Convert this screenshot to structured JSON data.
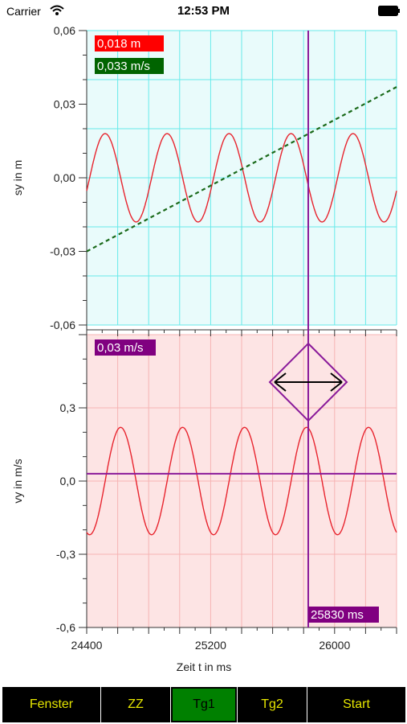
{
  "status": {
    "carrier": "Carrier",
    "time": "12:53 PM"
  },
  "toolbar": {
    "buttons": [
      {
        "label": "Fenster",
        "active": false
      },
      {
        "label": "ZZ",
        "active": false
      },
      {
        "label": "Tg1",
        "active": true
      },
      {
        "label": "Tg2",
        "active": false
      },
      {
        "label": "Start",
        "active": false
      }
    ]
  },
  "colors": {
    "top_bg": "#e9fbfb",
    "top_grid": "#66eaea",
    "bottom_bg": "#fde4e4",
    "bottom_grid": "#f6b4b4",
    "curve": "#e8242e",
    "dashed": "#1a6a1a",
    "cursor": "#8a1a9a"
  },
  "chart_data": [
    {
      "type": "line",
      "ylabel": "sy in m",
      "ylim": [
        -0.06,
        0.06
      ],
      "ytick_labels": [
        "0,06",
        "0,03",
        "0,00",
        "-0,03",
        "-0,06"
      ],
      "series": [
        {
          "role": "position sy",
          "amplitude": 0.018,
          "period_ms": 400,
          "start": [
            24400,
            0.0
          ]
        },
        {
          "role": "dashed linear fit",
          "style": "dashed",
          "x": [
            24400,
            26400
          ],
          "y": [
            -0.03,
            0.037
          ]
        }
      ],
      "readouts": [
        {
          "text": "0,018 m",
          "color": "#ff0000"
        },
        {
          "text": "0,033 m/s",
          "color": "#006400"
        }
      ]
    },
    {
      "type": "line",
      "ylabel": "vy in m/s",
      "xlabel": "Zeit t in ms",
      "ylim": [
        -0.6,
        0.6
      ],
      "ytick_labels": [
        "0,3",
        "0,0",
        "-0,3",
        "-0,6"
      ],
      "xlim": [
        24400,
        26400
      ],
      "xtick_labels": [
        "24400",
        "25200",
        "26000"
      ],
      "series": [
        {
          "role": "velocity vy",
          "amplitude": 0.22,
          "period_ms": 400
        },
        {
          "role": "mean velocity line",
          "y": 0.03
        }
      ],
      "readouts": [
        {
          "text": "0,03 m/s",
          "color": "#800080"
        },
        {
          "text": "25830 ms",
          "color": "#800080"
        }
      ],
      "cursor_x": 25830
    }
  ]
}
